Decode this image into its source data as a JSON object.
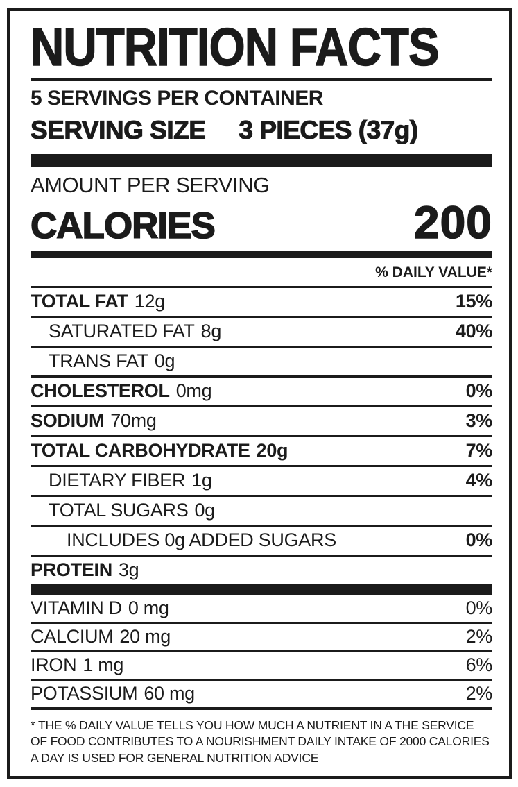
{
  "colors": {
    "ink": "#1b1b1b",
    "background": "#ffffff"
  },
  "header": {
    "title": "NUTRITION FACTS",
    "servings_per_container": "5 SERVINGS PER CONTAINER",
    "serving_size_label": "SERVING SIZE",
    "serving_size_value": "3 PIECES (37g)"
  },
  "calories": {
    "amount_per_serving": "AMOUNT PER SERVING",
    "label": "CALORIES",
    "value": "200"
  },
  "daily_value_header": "% DAILY VALUE*",
  "rows": [
    {
      "name": "TOTAL FAT",
      "amount": "12g",
      "dv": "15%"
    },
    {
      "name": "SATURATED FAT",
      "amount": "8g",
      "dv": "40%"
    },
    {
      "name": "TRANS FAT",
      "amount": "0g",
      "dv": ""
    },
    {
      "name": "CHOLESTEROL",
      "amount": "0mg",
      "dv": "0%"
    },
    {
      "name": "SODIUM",
      "amount": "70mg",
      "dv": "3%"
    },
    {
      "name": "TOTAL CARBOHYDRATE",
      "amount": "20g",
      "dv": "7%"
    },
    {
      "name": "DIETARY FIBER",
      "amount": "1g",
      "dv": "4%"
    },
    {
      "name": "TOTAL SUGARS",
      "amount": "0g",
      "dv": ""
    },
    {
      "name": "INCLUDES 0g ADDED SUGARS",
      "amount": "",
      "dv": "0%"
    },
    {
      "name": "PROTEIN",
      "amount": "3g",
      "dv": ""
    }
  ],
  "vitamins": [
    {
      "name": "VITAMIN D",
      "amount": "0 mg",
      "dv": "0%"
    },
    {
      "name": "CALCIUM",
      "amount": "20 mg",
      "dv": "2%"
    },
    {
      "name": "IRON",
      "amount": "1 mg",
      "dv": "6%"
    },
    {
      "name": "POTASSIUM",
      "amount": "60 mg",
      "dv": "2%"
    }
  ],
  "footnote": "* THE % DAILY VALUE TELLS YOU HOW MUCH A NUTRIENT IN A THE SERVICE OF FOOD CONTRIBUTES TO A NOURISHMENT DAILY INTAKE OF 2000 CALORIES A DAY IS USED FOR GENERAL NUTRITION ADVICE"
}
